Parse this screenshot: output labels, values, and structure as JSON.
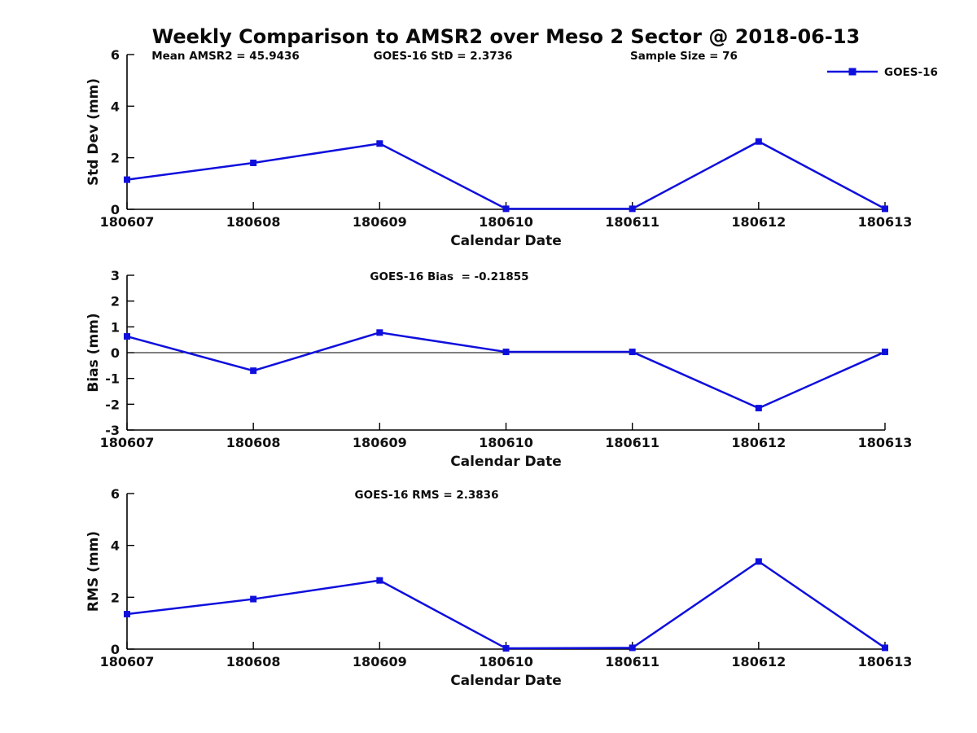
{
  "title": "Weekly Comparison to AMSR2 over Meso 2 Sector @ 2018-06-13",
  "colors": {
    "series": "#0f0fdd",
    "axis": "#000000",
    "text": "#111111"
  },
  "legend": {
    "label": "GOES-16"
  },
  "chart_data": [
    {
      "type": "line",
      "panel": "std-dev",
      "categories": [
        "180607",
        "180608",
        "180609",
        "180610",
        "180611",
        "180612",
        "180613"
      ],
      "series": [
        {
          "name": "GOES-16",
          "values": [
            1.15,
            1.8,
            2.55,
            0.02,
            0.02,
            2.63,
            0.02
          ]
        }
      ],
      "annotations": [
        "Mean AMSR2 = 45.9436",
        "GOES-16 StD = 2.3736",
        "Sample Size = 76"
      ],
      "xlabel": "Calendar Date",
      "ylabel": "Std Dev (mm)",
      "ylim": [
        0,
        6
      ],
      "yticks": [
        0,
        2,
        4,
        6
      ],
      "zero_line": false,
      "show_legend": true,
      "grid": false
    },
    {
      "type": "line",
      "panel": "bias",
      "categories": [
        "180607",
        "180608",
        "180609",
        "180610",
        "180611",
        "180612",
        "180613"
      ],
      "series": [
        {
          "name": "GOES-16",
          "values": [
            0.63,
            -0.7,
            0.78,
            0.03,
            0.03,
            -2.15,
            0.03
          ]
        }
      ],
      "annotations": [
        "GOES-16 Bias  = -0.21855"
      ],
      "xlabel": "Calendar Date",
      "ylabel": "Bias (mm)",
      "ylim": [
        -3,
        3
      ],
      "yticks": [
        -3,
        -2,
        -1,
        0,
        1,
        2,
        3
      ],
      "zero_line": true,
      "show_legend": false,
      "grid": false
    },
    {
      "type": "line",
      "panel": "rms",
      "categories": [
        "180607",
        "180608",
        "180609",
        "180610",
        "180611",
        "180612",
        "180613"
      ],
      "series": [
        {
          "name": "GOES-16",
          "values": [
            1.35,
            1.93,
            2.65,
            0.03,
            0.05,
            3.38,
            0.05
          ]
        }
      ],
      "annotations": [
        "GOES-16 RMS = 2.3836"
      ],
      "xlabel": "Calendar Date",
      "ylabel": "RMS (mm)",
      "ylim": [
        0,
        6
      ],
      "yticks": [
        0,
        2,
        4,
        6
      ],
      "zero_line": false,
      "show_legend": false,
      "grid": false
    }
  ]
}
